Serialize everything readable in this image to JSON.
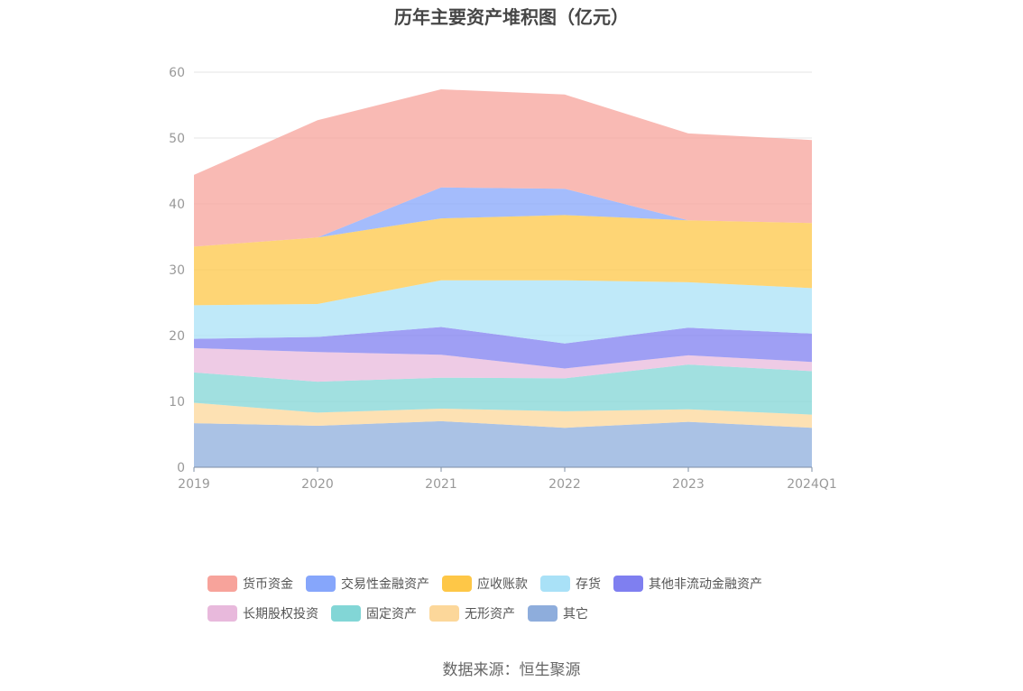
{
  "chart_data": {
    "type": "area",
    "stacked": true,
    "title": "历年主要资产堆积图（亿元）",
    "categories": [
      "2019",
      "2020",
      "2021",
      "2022",
      "2023",
      "2024Q1"
    ],
    "ylim": [
      0,
      60
    ],
    "yticks": [
      0,
      10,
      20,
      30,
      40,
      50,
      60
    ],
    "grid": true,
    "legend_position": "bottom",
    "series": [
      {
        "name": "其它",
        "color": "#8eaddc",
        "values": [
          6.7,
          6.3,
          7.0,
          6.0,
          6.9,
          6.0
        ]
      },
      {
        "name": "无形资产",
        "color": "#fcd79a",
        "values": [
          3.1,
          2.0,
          1.9,
          2.5,
          1.9,
          2.0
        ]
      },
      {
        "name": "固定资产",
        "color": "#82d6d6",
        "values": [
          4.6,
          4.7,
          4.7,
          5.0,
          6.8,
          6.6
        ]
      },
      {
        "name": "长期股权投资",
        "color": "#e8b9dc",
        "values": [
          3.7,
          4.5,
          3.5,
          1.5,
          1.4,
          1.4
        ]
      },
      {
        "name": "其他非流动金融资产",
        "color": "#7f7ff0",
        "values": [
          1.4,
          2.3,
          4.2,
          3.8,
          4.2,
          4.3
        ]
      },
      {
        "name": "存货",
        "color": "#a9e1f7",
        "values": [
          5.1,
          5.0,
          7.1,
          9.6,
          6.9,
          6.9
        ]
      },
      {
        "name": "应收账款",
        "color": "#fec747",
        "values": [
          8.9,
          10.1,
          9.4,
          9.9,
          9.4,
          9.9
        ]
      },
      {
        "name": "交易性金融资产",
        "color": "#86a6fb",
        "values": [
          0.0,
          0.0,
          4.7,
          4.0,
          0.0,
          0.0
        ]
      },
      {
        "name": "货币资金",
        "color": "#f7a39b",
        "values": [
          10.9,
          17.8,
          14.9,
          14.3,
          13.2,
          12.6
        ]
      }
    ],
    "legend_order": [
      "货币资金",
      "交易性金融资产",
      "应收账款",
      "存货",
      "其他非流动金融资产",
      "长期股权投资",
      "固定资产",
      "无形资产",
      "其它"
    ]
  },
  "legend": {
    "row1": [
      "货币资金",
      "交易性金融资产",
      "应收账款",
      "存货",
      "其他非流动金融资产"
    ],
    "row2": [
      "长期股权投资",
      "固定资产",
      "无形资产",
      "其它"
    ]
  },
  "source": "数据来源：恒生聚源"
}
